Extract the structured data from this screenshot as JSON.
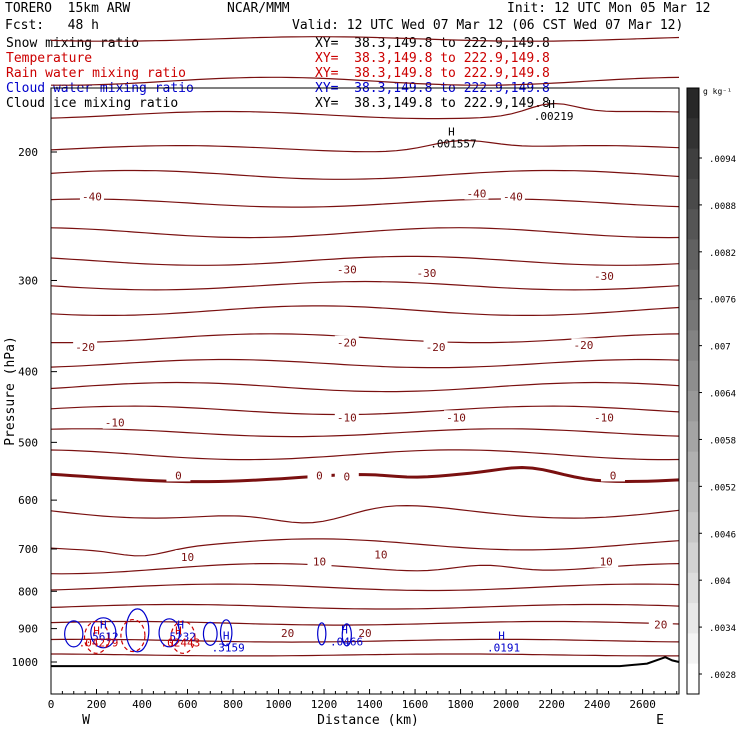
{
  "header": {
    "model": "TORERO  15km ARW",
    "org": "NCAR/MMM",
    "init": "Init: 12 UTC Mon 05 Mar 12",
    "fcst": "Fcst:   48 h",
    "valid": "Valid: 12 UTC Wed 07 Mar 12 (06 CST Wed 07 Mar 12)"
  },
  "fields": [
    {
      "name": "Snow mixing ratio",
      "color": "#000000",
      "xy": "XY=  38.3,149.8 to 222.9,149.8"
    },
    {
      "name": "Temperature",
      "color": "#cc0000",
      "xy": "XY=  38.3,149.8 to 222.9,149.8"
    },
    {
      "name": "Rain water mixing ratio",
      "color": "#cc0000",
      "xy": "XY=  38.3,149.8 to 222.9,149.8"
    },
    {
      "name": "Cloud water mixing ratio",
      "color": "#0000cc",
      "xy": "XY=  38.3,149.8 to 222.9,149.8"
    },
    {
      "name": "Cloud ice mixing ratio",
      "color": "#000000",
      "xy": "XY=  38.3,149.8 to 222.9,149.8"
    }
  ],
  "chart_data": {
    "type": "contour",
    "xlabel": "Distance (km)",
    "ylabel": "Pressure (hPa)",
    "xlim": [
      0,
      2760
    ],
    "ylim": [
      1050,
      100
    ],
    "x_ticks": [
      0,
      200,
      400,
      600,
      800,
      1000,
      1200,
      1400,
      1600,
      1800,
      2000,
      2200,
      2400,
      2600
    ],
    "y_ticks": [
      200,
      300,
      400,
      500,
      600,
      700,
      800,
      900,
      1000
    ],
    "y_scale": "log",
    "west_label": "W",
    "east_label": "E",
    "colorbar": {
      "unit": "g kg⁻¹",
      "tick_labels": [
        ".0094",
        ".0088",
        ".0082",
        ".0076",
        ".007",
        ".0064",
        ".0058",
        ".0052",
        ".0046",
        ".004",
        ".0034",
        ".0028"
      ]
    },
    "temperature_contour_labels": [
      {
        "text": "-40",
        "x": 180,
        "p": 230
      },
      {
        "text": "-40",
        "x": 1870,
        "p": 228
      },
      {
        "text": "-40",
        "x": 2030,
        "p": 230
      },
      {
        "text": "-30",
        "x": 1300,
        "p": 290
      },
      {
        "text": "-30",
        "x": 1650,
        "p": 293
      },
      {
        "text": "-30",
        "x": 2430,
        "p": 296
      },
      {
        "text": "-20",
        "x": 150,
        "p": 370
      },
      {
        "text": "-20",
        "x": 1300,
        "p": 365
      },
      {
        "text": "-20",
        "x": 1690,
        "p": 370
      },
      {
        "text": "-20",
        "x": 2340,
        "p": 368
      },
      {
        "text": "-10",
        "x": 280,
        "p": 470
      },
      {
        "text": "-10",
        "x": 1300,
        "p": 462
      },
      {
        "text": "-10",
        "x": 1780,
        "p": 462
      },
      {
        "text": "-10",
        "x": 2430,
        "p": 462
      },
      {
        "text": "0",
        "x": 560,
        "p": 555
      },
      {
        "text": "0",
        "x": 1180,
        "p": 555
      },
      {
        "text": "0",
        "x": 1300,
        "p": 557
      },
      {
        "text": "0",
        "x": 2470,
        "p": 555
      },
      {
        "text": "10",
        "x": 600,
        "p": 718
      },
      {
        "text": "10",
        "x": 1180,
        "p": 728
      },
      {
        "text": "10",
        "x": 1450,
        "p": 712
      },
      {
        "text": "10",
        "x": 2440,
        "p": 728
      },
      {
        "text": "20",
        "x": 1040,
        "p": 912
      },
      {
        "text": "20",
        "x": 1380,
        "p": 912
      },
      {
        "text": "20",
        "x": 2680,
        "p": 888
      }
    ],
    "max_labels": [
      {
        "mark": "H",
        "value": ".001557",
        "color": "#000000",
        "x": 1760,
        "p": 190
      },
      {
        "mark": "H",
        "value": ".00219",
        "color": "#000000",
        "x": 2200,
        "p": 174
      },
      {
        "mark": "H",
        "value": "5612",
        "color": "#0000cc",
        "x": 230,
        "p": 900
      },
      {
        "mark": "H",
        "value": ".04279",
        "color": "#cc0000",
        "x": 200,
        "p": 917
      },
      {
        "mark": "H",
        "value": "5232",
        "color": "#0000cc",
        "x": 570,
        "p": 900
      },
      {
        "mark": "H",
        "value": ".02443",
        "color": "#cc0000",
        "x": 560,
        "p": 917
      },
      {
        "mark": "H",
        "value": ".3159",
        "color": "#0000cc",
        "x": 770,
        "p": 932
      },
      {
        "mark": "H",
        "value": ".0466",
        "color": "#0000cc",
        "x": 1290,
        "p": 914
      },
      {
        "mark": "H",
        "value": ".0191",
        "color": "#0000cc",
        "x": 1980,
        "p": 932
      }
    ]
  }
}
